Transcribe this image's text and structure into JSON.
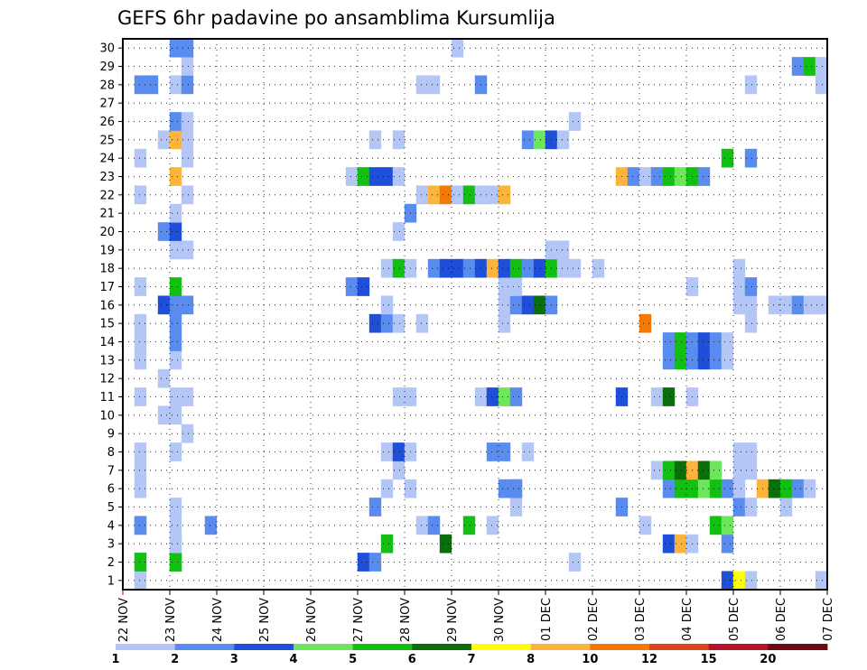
{
  "chart_data": {
    "type": "heatmap",
    "title": "GEFS 6hr padavine po ansamblima Kursumlija",
    "x_ticks": [
      "22 NOV",
      "23 NOV",
      "24 NOV",
      "25 NOV",
      "26 NOV",
      "27 NOV",
      "28 NOV",
      "29 NOV",
      "30 NOV",
      "01 DEC",
      "02 DEC",
      "03 DEC",
      "04 DEC",
      "05 DEC",
      "06 DEC",
      "07 DEC"
    ],
    "y_ticks": [
      "1",
      "2",
      "3",
      "4",
      "5",
      "6",
      "7",
      "8",
      "9",
      "10",
      "11",
      "12",
      "13",
      "14",
      "15",
      "16",
      "17",
      "18",
      "19",
      "20",
      "21",
      "22",
      "23",
      "24",
      "25",
      "26",
      "27",
      "28",
      "29",
      "30"
    ],
    "xlim": [
      0,
      60
    ],
    "ylim": [
      0.5,
      30.5
    ],
    "x_step": "6hr",
    "grid": true,
    "colorbar": {
      "labels": [
        "1",
        "2",
        "3",
        "4",
        "5",
        "6",
        "7",
        "8",
        "10",
        "12",
        "15",
        "20"
      ],
      "colors": [
        "#b3c6f5",
        "#5a8cef",
        "#1f4fd8",
        "#6de65c",
        "#14bf14",
        "#0a6e0a",
        "#ffff00",
        "#fcb43c",
        "#f47a05",
        "#e0421e",
        "#b8132a",
        "#6e0a12"
      ]
    },
    "cells": [
      [
        1,
        1,
        1
      ],
      [
        1,
        2,
        1
      ],
      [
        4,
        2,
        2
      ],
      [
        4,
        3,
        4
      ],
      [
        4,
        4,
        1
      ],
      [
        7,
        4,
        2
      ],
      [
        21,
        5,
        2
      ],
      [
        24,
        6,
        1
      ],
      [
        33,
        6,
        2
      ],
      [
        47,
        6,
        1
      ],
      [
        51,
        3,
        2
      ],
      [
        51,
        1,
        3
      ],
      [
        52,
        1,
        7
      ],
      [
        53,
        1,
        1
      ],
      [
        59,
        1,
        1
      ],
      [
        1,
        2,
        5
      ],
      [
        4,
        2,
        5
      ],
      [
        20,
        2,
        3
      ],
      [
        21,
        2,
        2
      ],
      [
        38,
        2,
        1
      ],
      [
        4,
        3,
        1
      ],
      [
        22,
        3,
        5
      ],
      [
        27,
        3,
        6
      ],
      [
        46,
        3,
        3
      ],
      [
        47,
        3,
        8
      ],
      [
        48,
        3,
        1
      ],
      [
        1,
        4,
        2
      ],
      [
        1,
        4,
        2
      ],
      [
        25,
        4,
        1
      ],
      [
        26,
        4,
        2
      ],
      [
        29,
        4,
        5
      ],
      [
        31,
        4,
        1
      ],
      [
        44,
        4,
        1
      ],
      [
        50,
        4,
        5
      ],
      [
        51,
        4,
        4
      ],
      [
        4,
        5,
        1
      ],
      [
        33,
        5,
        1
      ],
      [
        42,
        5,
        2
      ],
      [
        52,
        5,
        2
      ],
      [
        53,
        5,
        1
      ],
      [
        56,
        5,
        1
      ],
      [
        1,
        6,
        1
      ],
      [
        22,
        6,
        1
      ],
      [
        32,
        6,
        2
      ],
      [
        33,
        6,
        2
      ],
      [
        46,
        6,
        2
      ],
      [
        47,
        6,
        5
      ],
      [
        48,
        6,
        5
      ],
      [
        49,
        6,
        4
      ],
      [
        50,
        6,
        5
      ],
      [
        51,
        6,
        2
      ],
      [
        52,
        6,
        1
      ],
      [
        54,
        6,
        8
      ],
      [
        55,
        6,
        6
      ],
      [
        56,
        6,
        5
      ],
      [
        57,
        6,
        2
      ],
      [
        58,
        6,
        1
      ],
      [
        1,
        7,
        1
      ],
      [
        23,
        7,
        1
      ],
      [
        45,
        7,
        1
      ],
      [
        46,
        7,
        5
      ],
      [
        47,
        7,
        6
      ],
      [
        48,
        7,
        8
      ],
      [
        49,
        7,
        6
      ],
      [
        50,
        7,
        4
      ],
      [
        52,
        7,
        1
      ],
      [
        53,
        7,
        1
      ],
      [
        1,
        8,
        1
      ],
      [
        4,
        8,
        1
      ],
      [
        22,
        8,
        1
      ],
      [
        23,
        8,
        3
      ],
      [
        24,
        8,
        1
      ],
      [
        31,
        8,
        2
      ],
      [
        32,
        8,
        2
      ],
      [
        34,
        8,
        1
      ],
      [
        52,
        8,
        1
      ],
      [
        53,
        8,
        1
      ],
      [
        5,
        9,
        1
      ],
      [
        3,
        10,
        1
      ],
      [
        4,
        10,
        1
      ],
      [
        1,
        11,
        1
      ],
      [
        4,
        11,
        1
      ],
      [
        5,
        11,
        1
      ],
      [
        23,
        11,
        1
      ],
      [
        24,
        11,
        1
      ],
      [
        30,
        11,
        1
      ],
      [
        31,
        11,
        3
      ],
      [
        32,
        11,
        4
      ],
      [
        33,
        11,
        2
      ],
      [
        42,
        11,
        3
      ],
      [
        45,
        11,
        1
      ],
      [
        46,
        11,
        6
      ],
      [
        48,
        11,
        1
      ],
      [
        3,
        12,
        1
      ],
      [
        1,
        13,
        1
      ],
      [
        4,
        13,
        1
      ],
      [
        46,
        13,
        2
      ],
      [
        47,
        13,
        5
      ],
      [
        48,
        13,
        2
      ],
      [
        49,
        13,
        3
      ],
      [
        50,
        13,
        2
      ],
      [
        51,
        13,
        1
      ],
      [
        1,
        14,
        1
      ],
      [
        4,
        14,
        2
      ],
      [
        46,
        14,
        2
      ],
      [
        47,
        14,
        5
      ],
      [
        48,
        14,
        2
      ],
      [
        49,
        14,
        3
      ],
      [
        50,
        14,
        2
      ],
      [
        51,
        14,
        1
      ],
      [
        1,
        15,
        1
      ],
      [
        4,
        15,
        2
      ],
      [
        21,
        15,
        3
      ],
      [
        22,
        15,
        2
      ],
      [
        23,
        15,
        1
      ],
      [
        25,
        15,
        1
      ],
      [
        32,
        15,
        1
      ],
      [
        44,
        15,
        9
      ],
      [
        53,
        15,
        1
      ],
      [
        3,
        16,
        3
      ],
      [
        4,
        16,
        2
      ],
      [
        5,
        16,
        2
      ],
      [
        22,
        16,
        1
      ],
      [
        32,
        16,
        1
      ],
      [
        33,
        16,
        2
      ],
      [
        34,
        16,
        3
      ],
      [
        35,
        16,
        6
      ],
      [
        36,
        16,
        2
      ],
      [
        52,
        16,
        1
      ],
      [
        53,
        16,
        1
      ],
      [
        55,
        16,
        1
      ],
      [
        56,
        16,
        1
      ],
      [
        57,
        16,
        2
      ],
      [
        58,
        16,
        1
      ],
      [
        59,
        16,
        1
      ],
      [
        1,
        17,
        1
      ],
      [
        4,
        17,
        5
      ],
      [
        19,
        17,
        2
      ],
      [
        20,
        17,
        3
      ],
      [
        32,
        17,
        1
      ],
      [
        33,
        17,
        1
      ],
      [
        48,
        17,
        1
      ],
      [
        52,
        17,
        1
      ],
      [
        53,
        17,
        2
      ],
      [
        22,
        18,
        1
      ],
      [
        23,
        18,
        5
      ],
      [
        24,
        18,
        1
      ],
      [
        26,
        18,
        2
      ],
      [
        27,
        18,
        3
      ],
      [
        28,
        18,
        3
      ],
      [
        29,
        18,
        2
      ],
      [
        30,
        18,
        3
      ],
      [
        31,
        18,
        8
      ],
      [
        32,
        18,
        3
      ],
      [
        33,
        18,
        5
      ],
      [
        34,
        18,
        2
      ],
      [
        35,
        18,
        3
      ],
      [
        36,
        18,
        5
      ],
      [
        37,
        18,
        1
      ],
      [
        38,
        18,
        1
      ],
      [
        40,
        18,
        1
      ],
      [
        52,
        18,
        1
      ],
      [
        4,
        19,
        1
      ],
      [
        5,
        19,
        1
      ],
      [
        36,
        19,
        1
      ],
      [
        37,
        19,
        1
      ],
      [
        3,
        20,
        2
      ],
      [
        4,
        20,
        3
      ],
      [
        23,
        20,
        1
      ],
      [
        4,
        21,
        1
      ],
      [
        24,
        21,
        2
      ],
      [
        1,
        22,
        1
      ],
      [
        5,
        22,
        1
      ],
      [
        25,
        22,
        1
      ],
      [
        26,
        22,
        8
      ],
      [
        27,
        22,
        9
      ],
      [
        28,
        22,
        1
      ],
      [
        29,
        22,
        5
      ],
      [
        30,
        22,
        1
      ],
      [
        31,
        22,
        1
      ],
      [
        32,
        22,
        8
      ],
      [
        4,
        23,
        8
      ],
      [
        19,
        23,
        1
      ],
      [
        20,
        23,
        5
      ],
      [
        21,
        23,
        3
      ],
      [
        22,
        23,
        3
      ],
      [
        23,
        23,
        1
      ],
      [
        42,
        23,
        8
      ],
      [
        43,
        23,
        2
      ],
      [
        44,
        23,
        1
      ],
      [
        45,
        23,
        2
      ],
      [
        46,
        23,
        5
      ],
      [
        47,
        23,
        4
      ],
      [
        48,
        23,
        5
      ],
      [
        49,
        23,
        2
      ],
      [
        1,
        24,
        1
      ],
      [
        5,
        24,
        1
      ],
      [
        51,
        24,
        5
      ],
      [
        53,
        24,
        2
      ],
      [
        3,
        25,
        1
      ],
      [
        4,
        25,
        8
      ],
      [
        5,
        25,
        1
      ],
      [
        21,
        25,
        1
      ],
      [
        23,
        25,
        1
      ],
      [
        34,
        25,
        2
      ],
      [
        35,
        25,
        4
      ],
      [
        36,
        25,
        3
      ],
      [
        37,
        25,
        1
      ],
      [
        4,
        26,
        2
      ],
      [
        5,
        26,
        1
      ],
      [
        38,
        26,
        1
      ],
      [
        1,
        28,
        2
      ],
      [
        2,
        28,
        2
      ],
      [
        4,
        28,
        1
      ],
      [
        5,
        28,
        2
      ],
      [
        25,
        28,
        1
      ],
      [
        26,
        28,
        1
      ],
      [
        30,
        28,
        2
      ],
      [
        53,
        28,
        1
      ],
      [
        59,
        28,
        1
      ],
      [
        5,
        29,
        1
      ],
      [
        57,
        29,
        2
      ],
      [
        58,
        29,
        5
      ],
      [
        59,
        29,
        1
      ],
      [
        4,
        30,
        2
      ],
      [
        5,
        30,
        2
      ],
      [
        28,
        30,
        1
      ]
    ]
  }
}
